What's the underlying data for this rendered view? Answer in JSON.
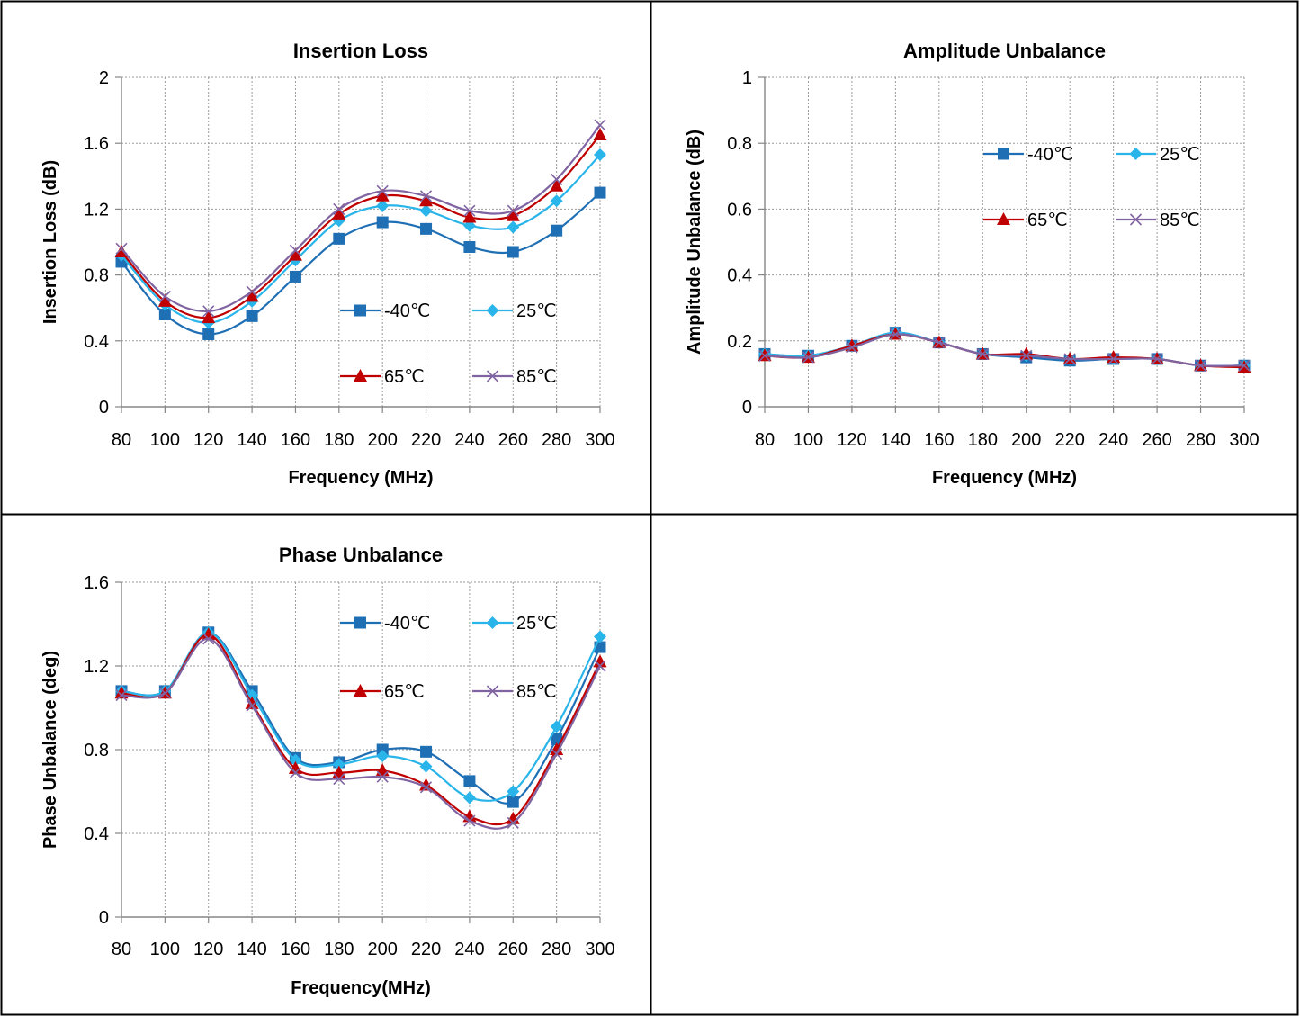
{
  "chart_data": [
    {
      "type": "line",
      "title": "Insertion Loss",
      "xlabel": "Frequency (MHz)",
      "ylabel": "Insertion Loss (dB)",
      "x": [
        80,
        100,
        120,
        140,
        160,
        180,
        200,
        220,
        240,
        260,
        280,
        300
      ],
      "xlim": [
        80,
        300
      ],
      "ylim": [
        0,
        2
      ],
      "yticks": [
        "0",
        "0.4",
        "0.8",
        "1.2",
        "1.6",
        "2"
      ],
      "grid": true,
      "legend_position": "lower-right",
      "series": [
        {
          "name": "-40℃",
          "color": "#1f6fb5",
          "marker": "square",
          "values": [
            0.88,
            0.56,
            0.44,
            0.55,
            0.79,
            1.02,
            1.12,
            1.08,
            0.97,
            0.94,
            1.07,
            1.3
          ]
        },
        {
          "name": "25℃",
          "color": "#29b5ea",
          "marker": "diamond",
          "values": [
            0.92,
            0.62,
            0.51,
            0.64,
            0.89,
            1.13,
            1.22,
            1.19,
            1.1,
            1.09,
            1.25,
            1.53
          ]
        },
        {
          "name": "65℃",
          "color": "#c00000",
          "marker": "triangle",
          "values": [
            0.94,
            0.64,
            0.54,
            0.67,
            0.92,
            1.17,
            1.28,
            1.25,
            1.15,
            1.16,
            1.34,
            1.65
          ]
        },
        {
          "name": "85℃",
          "color": "#8064a2",
          "marker": "x",
          "values": [
            0.96,
            0.67,
            0.58,
            0.7,
            0.95,
            1.2,
            1.31,
            1.28,
            1.19,
            1.19,
            1.38,
            1.71
          ]
        }
      ]
    },
    {
      "type": "line",
      "title": "Amplitude Unbalance",
      "xlabel": "Frequency (MHz)",
      "ylabel": "Amplitude Unbalance (dB)",
      "x": [
        80,
        100,
        120,
        140,
        160,
        180,
        200,
        220,
        240,
        260,
        280,
        300
      ],
      "xlim": [
        80,
        300
      ],
      "ylim": [
        0,
        1
      ],
      "yticks": [
        "0",
        "0.2",
        "0.4",
        "0.6",
        "0.8",
        "1"
      ],
      "grid": true,
      "legend_position": "top-right",
      "series": [
        {
          "name": "-40℃",
          "color": "#1f6fb5",
          "marker": "square",
          "values": [
            0.16,
            0.155,
            0.185,
            0.225,
            0.195,
            0.16,
            0.15,
            0.14,
            0.145,
            0.145,
            0.125,
            0.125
          ]
        },
        {
          "name": "25℃",
          "color": "#29b5ea",
          "marker": "diamond",
          "values": [
            0.16,
            0.155,
            0.185,
            0.225,
            0.195,
            0.16,
            0.155,
            0.145,
            0.145,
            0.145,
            0.125,
            0.125
          ]
        },
        {
          "name": "65℃",
          "color": "#c00000",
          "marker": "triangle",
          "values": [
            0.155,
            0.15,
            0.185,
            0.22,
            0.195,
            0.16,
            0.16,
            0.145,
            0.15,
            0.145,
            0.125,
            0.12
          ]
        },
        {
          "name": "85℃",
          "color": "#8064a2",
          "marker": "x",
          "values": [
            0.155,
            0.15,
            0.18,
            0.22,
            0.195,
            0.16,
            0.155,
            0.145,
            0.145,
            0.145,
            0.125,
            0.125
          ]
        }
      ]
    },
    {
      "type": "line",
      "title": "Phase Unbalance",
      "xlabel": "Frequency(MHz)",
      "ylabel": "Phase Unbalance (deg)",
      "x": [
        80,
        100,
        120,
        140,
        160,
        180,
        200,
        220,
        240,
        260,
        280,
        300
      ],
      "xlim": [
        80,
        300
      ],
      "ylim": [
        0,
        1.6
      ],
      "yticks": [
        "0",
        "0.4",
        "0.8",
        "1.2",
        "1.6"
      ],
      "grid": true,
      "legend_position": "top-right",
      "series": [
        {
          "name": "-40℃",
          "color": "#1f6fb5",
          "marker": "square",
          "values": [
            1.08,
            1.08,
            1.36,
            1.08,
            0.76,
            0.74,
            0.8,
            0.79,
            0.65,
            0.55,
            0.85,
            1.29
          ]
        },
        {
          "name": "25℃",
          "color": "#29b5ea",
          "marker": "diamond",
          "values": [
            1.08,
            1.08,
            1.36,
            1.06,
            0.75,
            0.73,
            0.77,
            0.72,
            0.57,
            0.6,
            0.91,
            1.34
          ]
        },
        {
          "name": "65℃",
          "color": "#c00000",
          "marker": "triangle",
          "values": [
            1.07,
            1.07,
            1.35,
            1.02,
            0.71,
            0.69,
            0.7,
            0.63,
            0.48,
            0.47,
            0.8,
            1.22
          ]
        },
        {
          "name": "85℃",
          "color": "#8064a2",
          "marker": "x",
          "values": [
            1.06,
            1.07,
            1.33,
            1.01,
            0.69,
            0.66,
            0.67,
            0.62,
            0.46,
            0.45,
            0.78,
            1.2
          ]
        }
      ]
    }
  ]
}
